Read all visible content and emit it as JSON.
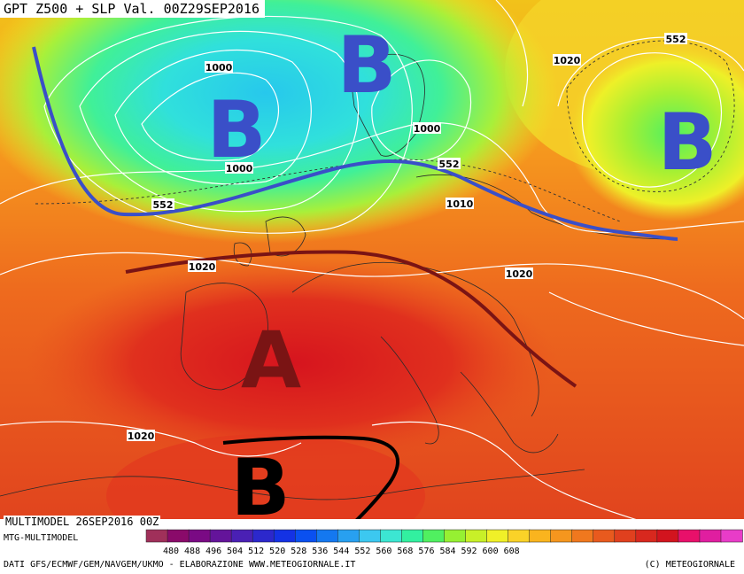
{
  "title": "GPT Z500 + SLP Val. 00Z29SEP2016",
  "run_label": "MULTIMODEL 26SEP2016 00Z",
  "model_label": "MTG-MULTIMODEL",
  "credit_label": "DATI GFS/ECMWF/GEM/NAVGEM/UKMO - ELABORAZIONE WWW.METEOGIORNALE.IT",
  "copyright_label": "(C) METEOGIORNALE",
  "pressure_systems": [
    {
      "letter": "B",
      "color": "#3a4fc8"
    },
    {
      "letter": "B",
      "color": "#3a4fc8"
    },
    {
      "letter": "B",
      "color": "#3a4fc8"
    },
    {
      "letter": "A",
      "color": "#7a1414"
    },
    {
      "letter": "B",
      "color": "#000000"
    }
  ],
  "isobar_labels": [
    "1000",
    "1000",
    "1000",
    "1010",
    "1020",
    "1020",
    "1020",
    "1020"
  ],
  "geopotential_labels": [
    "552",
    "552",
    "552"
  ],
  "scale_ticks": [
    "480",
    "488",
    "496",
    "504",
    "512",
    "520",
    "528",
    "536",
    "544",
    "552",
    "560",
    "568",
    "576",
    "584",
    "592",
    "600",
    "608"
  ],
  "scale_colors": [
    "#a0305a",
    "#8a0a6a",
    "#7a0a84",
    "#64149a",
    "#4a20b4",
    "#2c28cc",
    "#1432e4",
    "#0a50f0",
    "#1478f0",
    "#28a0f0",
    "#3cc8f0",
    "#3ce6d2",
    "#32f0a0",
    "#50f060",
    "#96f032",
    "#c8f028",
    "#f0f028",
    "#fad228",
    "#fab41e",
    "#f5961e",
    "#f0781e",
    "#e85a1e",
    "#e0401e",
    "#d8281e",
    "#d2141e",
    "#e8106a",
    "#e01ea0",
    "#e83cc8"
  ],
  "colors": {
    "trough_line": "#3a4fc8",
    "ridge_line": "#7a1414",
    "cutoff_line": "#000000"
  }
}
